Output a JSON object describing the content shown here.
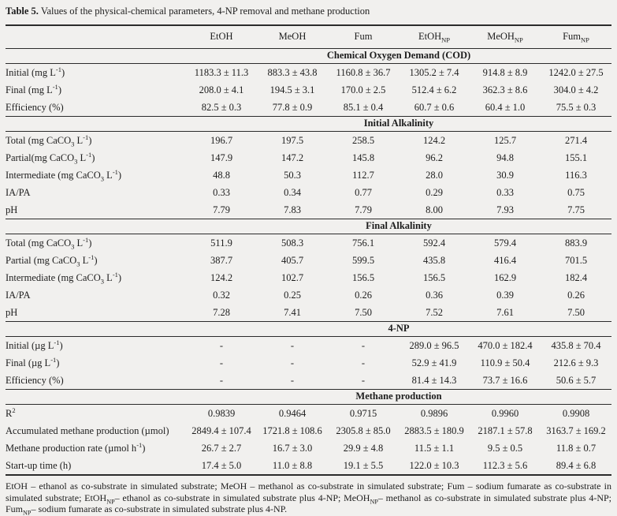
{
  "title": {
    "label": "Table 5.",
    "text": " Values of the physical-chemical parameters, 4-NP removal and methane production"
  },
  "table": {
    "columns": [
      "",
      "EtOH",
      "MeOH",
      "Fum",
      "EtOH_{NP}",
      "MeOH_{NP}",
      "Fum_{NP}"
    ],
    "sections": [
      {
        "header": "Chemical Oxygen Demand (COD)",
        "rows": [
          {
            "label": "Initial (mg L^{-1})",
            "values": [
              "1183.3 ± 11.3",
              "883.3 ± 43.8",
              "1160.8 ± 36.7",
              "1305.2 ± 7.4",
              "914.8 ± 8.9",
              "1242.0 ± 27.5"
            ]
          },
          {
            "label": "Final (mg L^{-1})",
            "values": [
              "208.0 ± 4.1",
              "194.5 ± 3.1",
              "170.0 ± 2.5",
              "512.4 ± 6.2",
              "362.3 ± 8.6",
              "304.0 ± 4.2"
            ]
          },
          {
            "label": "Efficiency (%)",
            "values": [
              "82.5 ± 0.3",
              "77.8 ± 0.9",
              "85.1 ± 0.4",
              "60.7 ± 0.6",
              "60.4 ± 1.0",
              "75.5 ± 0.3"
            ]
          }
        ]
      },
      {
        "header": "Initial Alkalinity",
        "rows": [
          {
            "label": "Total (mg CaCO_{3} L^{-1})",
            "values": [
              "196.7",
              "197.5",
              "258.5",
              "124.2",
              "125.7",
              "271.4"
            ]
          },
          {
            "label": "Partial(mg CaCO_{3} L^{-1})",
            "values": [
              "147.9",
              "147.2",
              "145.8",
              "96.2",
              "94.8",
              "155.1"
            ]
          },
          {
            "label": "Intermediate (mg CaCO_{3} L^{-1})",
            "values": [
              "48.8",
              "50.3",
              "112.7",
              "28.0",
              "30.9",
              "116.3"
            ]
          },
          {
            "label": "IA/PA",
            "values": [
              "0.33",
              "0.34",
              "0.77",
              "0.29",
              "0.33",
              "0.75"
            ]
          },
          {
            "label": "pH",
            "values": [
              "7.79",
              "7.83",
              "7.79",
              "8.00",
              "7.93",
              "7.75"
            ]
          }
        ]
      },
      {
        "header": "Final Alkalinity",
        "rows": [
          {
            "label": "Total (mg CaCO_{3} L^{-1})",
            "values": [
              "511.9",
              "508.3",
              "756.1",
              "592.4",
              "579.4",
              "883.9"
            ]
          },
          {
            "label": "Partial (mg CaCO_{3} L^{-1})",
            "values": [
              "387.7",
              "405.7",
              "599.5",
              "435.8",
              "416.4",
              "701.5"
            ]
          },
          {
            "label": "Intermediate (mg CaCO_{3} L^{-1})",
            "values": [
              "124.2",
              "102.7",
              "156.5",
              "156.5",
              "162.9",
              "182.4"
            ]
          },
          {
            "label": "IA/PA",
            "values": [
              "0.32",
              "0.25",
              "0.26",
              "0.36",
              "0.39",
              "0.26"
            ]
          },
          {
            "label": "pH",
            "values": [
              "7.28",
              "7.41",
              "7.50",
              "7.52",
              "7.61",
              "7.50"
            ]
          }
        ]
      },
      {
        "header": "4-NP",
        "rows": [
          {
            "label": "Initial (µg L^{-1})",
            "values": [
              "-",
              "-",
              "-",
              "289.0 ± 96.5",
              "470.0 ± 182.4",
              "435.8 ± 70.4"
            ]
          },
          {
            "label": "Final (µg L^{-1})",
            "values": [
              "-",
              "-",
              "-",
              "52.9 ± 41.9",
              "110.9 ± 50.4",
              "212.6 ± 9.3"
            ]
          },
          {
            "label": "Efficiency (%)",
            "values": [
              "-",
              "-",
              "-",
              "81.4 ± 14.3",
              "73.7 ± 16.6",
              "50.6 ± 5.7"
            ]
          }
        ]
      },
      {
        "header": "Methane production",
        "rows": [
          {
            "label": "R^{2}",
            "values": [
              "0.9839",
              "0.9464",
              "0.9715",
              "0.9896",
              "0.9960",
              "0.9908"
            ]
          },
          {
            "label": "Accumulated methane production (µmol)",
            "values": [
              "2849.4 ± 107.4",
              "1721.8 ± 108.6",
              "2305.8 ± 85.0",
              "2883.5 ± 180.9",
              "2187.1 ± 57.8",
              "3163.7 ± 169.2"
            ]
          },
          {
            "label": "Methane production rate (µmol h^{-1})",
            "values": [
              "26.7 ± 2.7",
              "16.7 ± 3.0",
              "29.9 ± 4.8",
              "11.5 ± 1.1",
              "9.5 ± 0.5",
              "11.8 ± 0.7"
            ]
          },
          {
            "label": "Start-up time (h)",
            "values": [
              "17.4 ± 5.0",
              "11.0 ± 8.8",
              "19.1 ± 5.5",
              "122.0 ± 10.3",
              "112.3 ± 5.6",
              "89.4 ± 6.8"
            ]
          }
        ]
      }
    ]
  },
  "footnote": "EtOH – ethanol as co-substrate in simulated substrate; MeOH – methanol as co-substrate in simulated substrate; Fum – sodium fumarate as co-substrate in simulated substrate; EtOH_{NP}– ethanol as co-substrate in simulated substrate plus 4-NP; MeOH_{NP}– methanol as co-substrate in simulated substrate plus 4-NP; Fum_{NP}– sodium fumarate as co-substrate in simulated substrate plus 4-NP."
}
